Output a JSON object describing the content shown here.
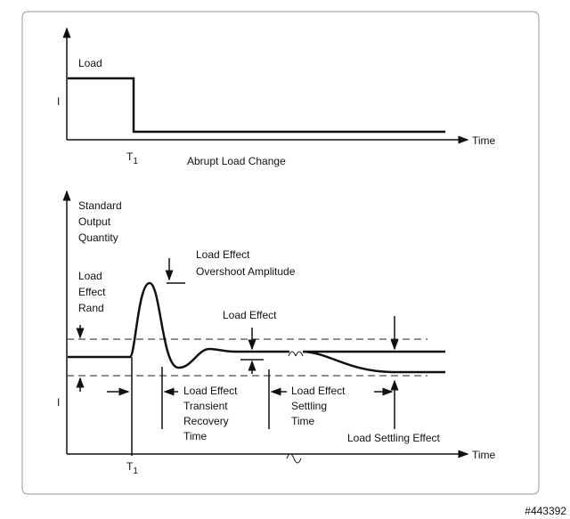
{
  "top_chart": {
    "y_label": "Load",
    "level_label": "I",
    "time_marker": {
      "main": "T",
      "sub": "1"
    },
    "x_label": "Time",
    "caption": "Abrupt Load Change"
  },
  "bottom_chart": {
    "y_label": [
      "Standard",
      "Output",
      "Quantity"
    ],
    "overshoot_label": [
      "Load Effect",
      "Overshoot Amplitude"
    ],
    "band_label": [
      "Load",
      "Effect",
      "Rand"
    ],
    "load_effect_label": "Load Effect",
    "level_label": "I",
    "recovery_label": [
      "Load Effect",
      "Transient",
      "Recovery",
      "Time"
    ],
    "settling_label": [
      "Load Effect",
      "Settling",
      "Time"
    ],
    "settling_effect_label": "Load Settling Effect",
    "time_marker": {
      "main": "T",
      "sub": "1"
    },
    "x_label": "Time"
  },
  "watermark": "#443392"
}
